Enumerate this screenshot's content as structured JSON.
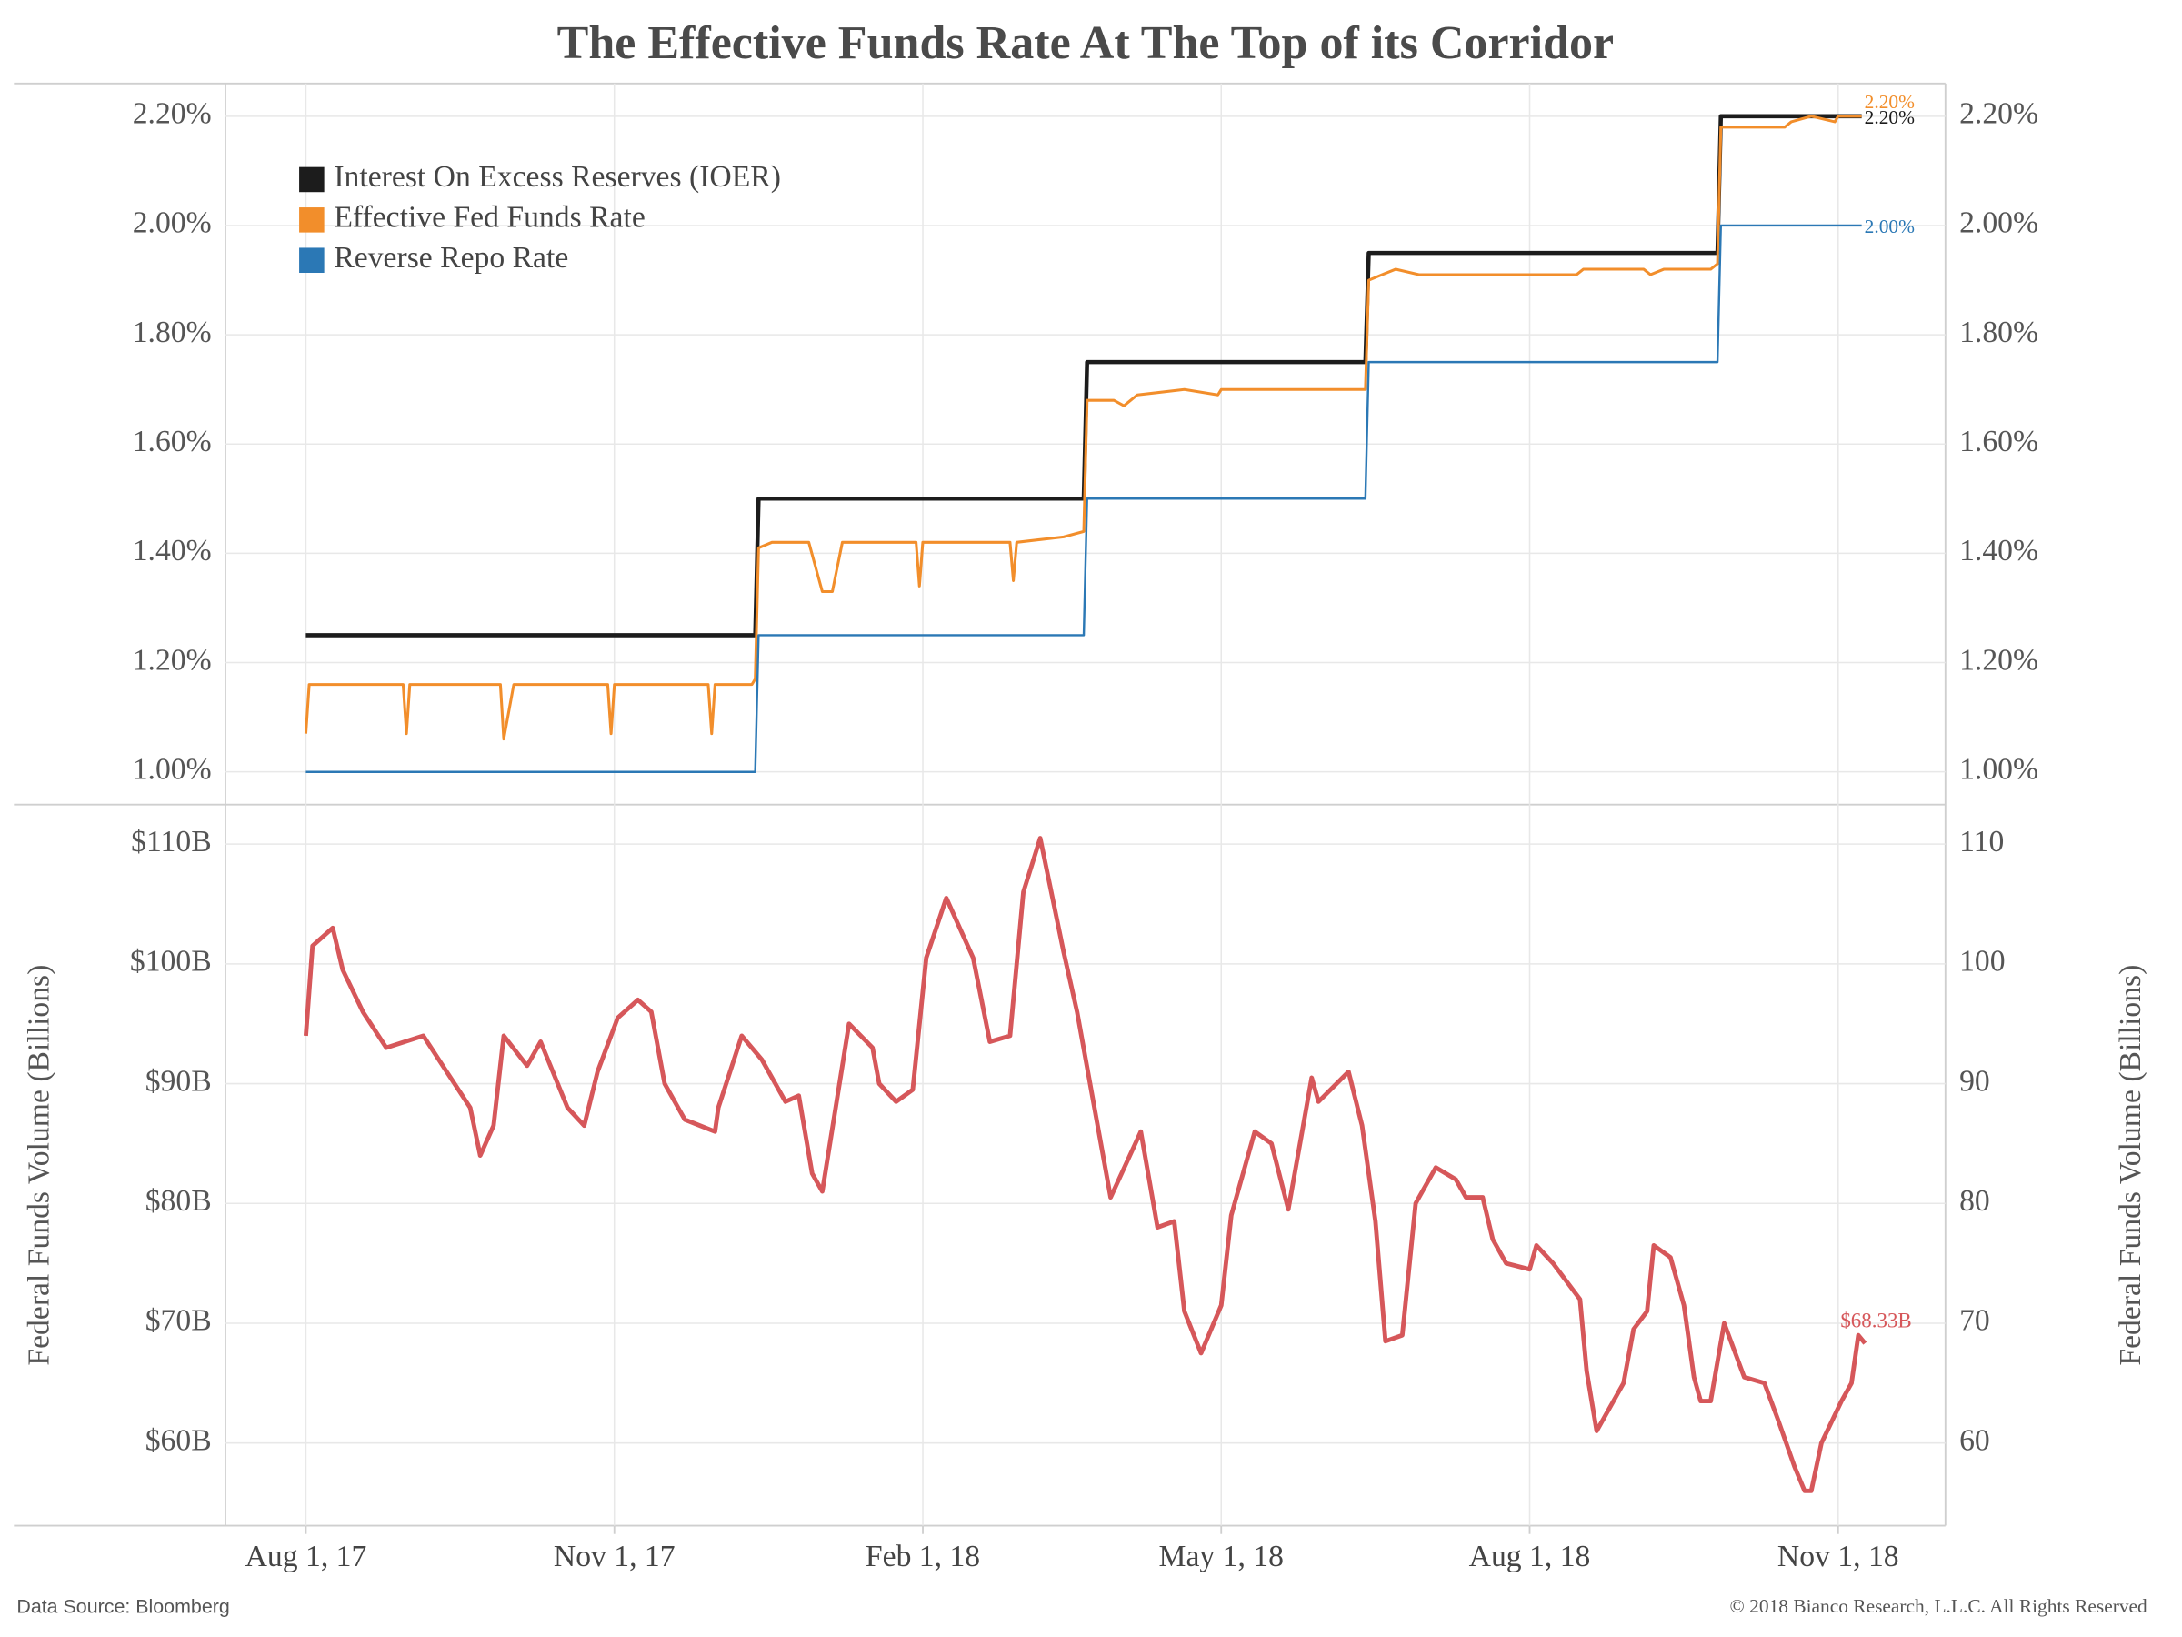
{
  "title": "The Effective Funds Rate At The Top of its Corridor",
  "source": "Data Source: Bloomberg",
  "copyright": "© 2018 Bianco Research, L.L.C. All Rights Reserved",
  "chart_data": [
    {
      "type": "line",
      "grid": true,
      "legend": "upper left",
      "xlim": [
        "2017-07-08",
        "2018-12-03"
      ],
      "xticks": [
        "2017-08-01",
        "2017-11-01",
        "2018-02-01",
        "2018-05-01",
        "2018-08-01",
        "2018-11-01"
      ],
      "ylim": [
        0.94,
        2.26
      ],
      "yticks": [
        {
          "value": 1.0,
          "label": "1.00%"
        },
        {
          "value": 1.2,
          "label": "1.20%"
        },
        {
          "value": 1.4,
          "label": "1.40%"
        },
        {
          "value": 1.6,
          "label": "1.60%"
        },
        {
          "value": 1.8,
          "label": "1.80%"
        },
        {
          "value": 2.0,
          "label": "2.00%"
        },
        {
          "value": 2.2,
          "label": "2.20%"
        }
      ],
      "series": [
        {
          "name": "Interest On Excess Reserves (IOER)",
          "color": "#1c1c1c",
          "x": [
            "2017-08-01",
            "2017-12-13",
            "2017-12-14",
            "2018-03-21",
            "2018-03-22",
            "2018-06-13",
            "2018-06-14",
            "2018-09-26",
            "2018-09-27",
            "2018-11-08"
          ],
          "values": [
            1.25,
            1.25,
            1.5,
            1.5,
            1.75,
            1.75,
            1.95,
            1.95,
            2.2,
            2.2
          ],
          "value_labels": [
            null,
            null,
            null,
            null,
            null,
            null,
            null,
            null,
            null,
            "2.20%"
          ]
        },
        {
          "name": "Effective Fed Funds Rate",
          "color": "#f28e2b",
          "x": [
            "2017-08-01",
            "2017-08-02",
            "2017-08-30",
            "2017-08-31",
            "2017-09-01",
            "2017-09-28",
            "2017-09-29",
            "2017-10-02",
            "2017-10-30",
            "2017-10-31",
            "2017-11-01",
            "2017-11-29",
            "2017-11-30",
            "2017-12-01",
            "2017-12-12",
            "2017-12-13",
            "2017-12-14",
            "2017-12-18",
            "2017-12-29",
            "2018-01-02",
            "2018-01-05",
            "2018-01-08",
            "2018-01-30",
            "2018-01-31",
            "2018-02-01",
            "2018-02-27",
            "2018-02-28",
            "2018-03-01",
            "2018-03-15",
            "2018-03-21",
            "2018-03-22",
            "2018-03-30",
            "2018-04-02",
            "2018-04-06",
            "2018-04-20",
            "2018-04-30",
            "2018-05-01",
            "2018-06-13",
            "2018-06-14",
            "2018-06-18",
            "2018-06-22",
            "2018-06-29",
            "2018-08-15",
            "2018-08-17",
            "2018-09-04",
            "2018-09-06",
            "2018-09-10",
            "2018-09-24",
            "2018-09-26",
            "2018-09-27",
            "2018-10-16",
            "2018-10-18",
            "2018-10-24",
            "2018-10-31",
            "2018-11-01",
            "2018-11-08"
          ],
          "values": [
            1.07,
            1.16,
            1.16,
            1.07,
            1.16,
            1.16,
            1.06,
            1.16,
            1.16,
            1.07,
            1.16,
            1.16,
            1.07,
            1.16,
            1.16,
            1.17,
            1.41,
            1.42,
            1.42,
            1.33,
            1.33,
            1.42,
            1.42,
            1.34,
            1.42,
            1.42,
            1.35,
            1.42,
            1.43,
            1.44,
            1.68,
            1.68,
            1.67,
            1.69,
            1.7,
            1.69,
            1.7,
            1.7,
            1.9,
            1.91,
            1.92,
            1.91,
            1.91,
            1.92,
            1.92,
            1.91,
            1.92,
            1.92,
            1.93,
            2.18,
            2.18,
            2.19,
            2.2,
            2.19,
            2.2,
            2.2
          ],
          "value_labels": [
            null,
            null,
            null,
            null,
            null,
            null,
            null,
            null,
            null,
            null,
            null,
            null,
            null,
            null,
            null,
            null,
            null,
            null,
            null,
            null,
            null,
            null,
            null,
            null,
            null,
            null,
            null,
            null,
            null,
            null,
            null,
            null,
            null,
            null,
            null,
            null,
            null,
            null,
            null,
            null,
            null,
            null,
            null,
            null,
            null,
            null,
            null,
            null,
            null,
            null,
            null,
            null,
            null,
            null,
            null,
            "2.20%"
          ]
        },
        {
          "name": "Reverse Repo Rate",
          "color": "#2b78b5",
          "x": [
            "2017-08-01",
            "2017-12-13",
            "2017-12-14",
            "2018-03-21",
            "2018-03-22",
            "2018-06-13",
            "2018-06-14",
            "2018-09-26",
            "2018-09-27",
            "2018-11-08"
          ],
          "values": [
            1.0,
            1.0,
            1.25,
            1.25,
            1.5,
            1.5,
            1.75,
            1.75,
            2.0,
            2.0
          ],
          "value_labels": [
            null,
            null,
            null,
            null,
            null,
            null,
            null,
            null,
            null,
            "2.00%"
          ]
        }
      ]
    },
    {
      "type": "line",
      "grid": true,
      "y_label": "Federal Funds Volume (Billions)",
      "xlim": [
        "2017-07-08",
        "2018-12-03"
      ],
      "xticks": [
        {
          "value": "2017-08-01",
          "label": "Aug 1, 17"
        },
        {
          "value": "2017-11-01",
          "label": "Nov 1, 17"
        },
        {
          "value": "2018-02-01",
          "label": "Feb 1, 18"
        },
        {
          "value": "2018-05-01",
          "label": "May 1, 18"
        },
        {
          "value": "2018-08-01",
          "label": "Aug 1, 18"
        },
        {
          "value": "2018-11-01",
          "label": "Nov 1, 18"
        }
      ],
      "ylim": [
        53.1,
        113.3
      ],
      "yticks": [
        {
          "value": 60,
          "label": "$60B"
        },
        {
          "value": 70,
          "label": "$70B"
        },
        {
          "value": 80,
          "label": "$80B"
        },
        {
          "value": 90,
          "label": "$90B"
        },
        {
          "value": 100,
          "label": "$100B"
        },
        {
          "value": 110,
          "label": "$110B"
        }
      ],
      "y2lim": [
        53.1,
        113.3
      ],
      "y2ticks": [
        60,
        70,
        80,
        90,
        100,
        110
      ],
      "series": [
        {
          "name": "Federal Funds Volume",
          "color": "#d6575a",
          "x": [
            "2017-08-01",
            "2017-08-03",
            "2017-08-09",
            "2017-08-12",
            "2017-08-18",
            "2017-08-25",
            "2017-09-05",
            "2017-09-12",
            "2017-09-19",
            "2017-09-22",
            "2017-09-26",
            "2017-09-29",
            "2017-10-06",
            "2017-10-10",
            "2017-10-18",
            "2017-10-23",
            "2017-10-27",
            "2017-11-02",
            "2017-11-08",
            "2017-11-12",
            "2017-11-16",
            "2017-11-22",
            "2017-12-01",
            "2017-12-02",
            "2017-12-09",
            "2017-12-15",
            "2017-12-22",
            "2017-12-26",
            "2017-12-30",
            "2018-01-02",
            "2018-01-10",
            "2018-01-17",
            "2018-01-19",
            "2018-01-24",
            "2018-01-29",
            "2018-02-02",
            "2018-02-08",
            "2018-02-16",
            "2018-02-21",
            "2018-02-27",
            "2018-03-03",
            "2018-03-08",
            "2018-03-15",
            "2018-03-19",
            "2018-03-29",
            "2018-04-07",
            "2018-04-12",
            "2018-04-17",
            "2018-04-20",
            "2018-04-25",
            "2018-05-01",
            "2018-05-04",
            "2018-05-11",
            "2018-05-16",
            "2018-05-21",
            "2018-05-28",
            "2018-05-30",
            "2018-06-08",
            "2018-06-12",
            "2018-06-16",
            "2018-06-19",
            "2018-06-24",
            "2018-06-28",
            "2018-07-04",
            "2018-07-10",
            "2018-07-13",
            "2018-07-18",
            "2018-07-21",
            "2018-07-25",
            "2018-08-01",
            "2018-08-03",
            "2018-08-08",
            "2018-08-16",
            "2018-08-18",
            "2018-08-21",
            "2018-08-29",
            "2018-09-01",
            "2018-09-05",
            "2018-09-07",
            "2018-09-12",
            "2018-09-16",
            "2018-09-19",
            "2018-09-21",
            "2018-09-24",
            "2018-09-28",
            "2018-10-04",
            "2018-10-10",
            "2018-10-14",
            "2018-10-19",
            "2018-10-22",
            "2018-10-24",
            "2018-10-27",
            "2018-11-02",
            "2018-11-05",
            "2018-11-07",
            "2018-11-09"
          ],
          "values": [
            94,
            101.5,
            103,
            99.5,
            96,
            93,
            94,
            91,
            88,
            84,
            86.5,
            94,
            91.5,
            93.5,
            88,
            86.5,
            91,
            95.5,
            97,
            96,
            90,
            87,
            86,
            88,
            94,
            92,
            88.5,
            89,
            82.5,
            81,
            95,
            93,
            90,
            88.5,
            89.5,
            100.5,
            105.5,
            100.5,
            93.5,
            94,
            106,
            110.5,
            101,
            96,
            80.5,
            86,
            78,
            78.5,
            71,
            67.5,
            71.5,
            79,
            86,
            85,
            79.5,
            90.5,
            88.5,
            91,
            86.5,
            78.5,
            68.5,
            69,
            80,
            83,
            82,
            80.5,
            80.5,
            77,
            75,
            74.5,
            76.5,
            75,
            72,
            66,
            61,
            65,
            69.5,
            71,
            76.5,
            75.5,
            71.5,
            65.5,
            63.5,
            63.5,
            70,
            65.5,
            65,
            62,
            58,
            56,
            56,
            60,
            63.5,
            65,
            69,
            68.33
          ],
          "value_labels": [
            null,
            null,
            null,
            null,
            null,
            null,
            null,
            null,
            null,
            null,
            null,
            null,
            null,
            null,
            null,
            null,
            null,
            null,
            null,
            null,
            null,
            null,
            null,
            null,
            null,
            null,
            null,
            null,
            null,
            null,
            null,
            null,
            null,
            null,
            null,
            null,
            null,
            null,
            null,
            null,
            null,
            null,
            null,
            null,
            null,
            null,
            null,
            null,
            null,
            null,
            null,
            null,
            null,
            null,
            null,
            null,
            null,
            null,
            null,
            null,
            null,
            null,
            null,
            null,
            null,
            null,
            null,
            null,
            null,
            null,
            null,
            null,
            null,
            null,
            null,
            null,
            null,
            null,
            null,
            null,
            null,
            null,
            null,
            null,
            null,
            null,
            null,
            null,
            null,
            null,
            null,
            null,
            null,
            null,
            null,
            "$68.33B"
          ]
        }
      ]
    }
  ]
}
